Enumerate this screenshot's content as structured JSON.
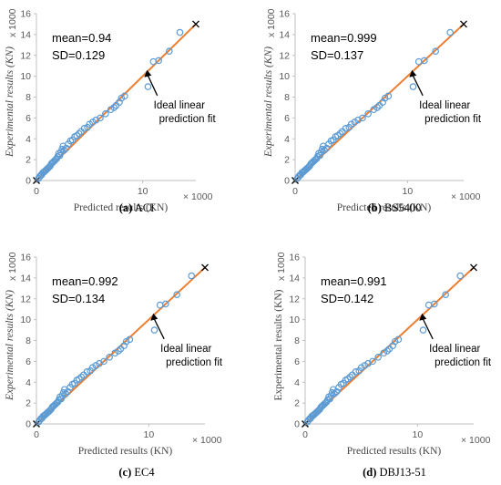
{
  "chart_data": [
    {
      "type": "scatter",
      "caption_letter": "(a)",
      "caption_name": "ACI",
      "mean_text": "mean=0.94",
      "sd_text": "SD=0.129",
      "annotation_line1": "Ideal linear",
      "annotation_line2": "prediction fit",
      "xlabel": "Predicted results (KN)",
      "ylabel": "Experimental results (KN)",
      "x_multiplier": "× 1000",
      "y_multiplier": "x 1000",
      "xlim": [
        0,
        15
      ],
      "ylim": [
        0,
        16
      ],
      "x_ticks": [
        "0",
        "10"
      ],
      "y_ticks": [
        "0",
        "2",
        "4",
        "6",
        "8",
        "10",
        "12",
        "14",
        "16"
      ],
      "ideal_line": [
        [
          0,
          0
        ],
        [
          15,
          15
        ]
      ],
      "x": [
        0.2,
        0.3,
        0.4,
        0.5,
        0.6,
        0.7,
        0.8,
        0.9,
        1.0,
        1.1,
        1.2,
        1.3,
        1.4,
        1.5,
        1.6,
        1.7,
        1.8,
        1.9,
        2.0,
        2.1,
        2.2,
        2.3,
        2.4,
        2.5,
        2.6,
        2.8,
        3.0,
        3.2,
        3.4,
        3.6,
        3.8,
        4.0,
        4.2,
        4.5,
        4.8,
        5.0,
        5.3,
        5.6,
        6.0,
        6.5,
        7.0,
        7.3,
        7.5,
        7.8,
        8.0,
        8.3,
        10.5,
        11.0,
        11.5,
        12.5,
        13.5
      ],
      "y": [
        0.2,
        0.35,
        0.5,
        0.55,
        0.75,
        0.8,
        0.9,
        1.0,
        1.1,
        1.2,
        1.3,
        1.4,
        1.6,
        1.7,
        1.8,
        1.9,
        2.0,
        2.1,
        2.3,
        2.6,
        2.4,
        2.7,
        3.0,
        3.3,
        2.9,
        3.1,
        3.5,
        3.8,
        3.9,
        4.2,
        4.3,
        4.5,
        4.7,
        5.0,
        5.1,
        5.4,
        5.6,
        5.8,
        6.0,
        6.4,
        6.8,
        7.0,
        7.2,
        7.5,
        7.9,
        8.1,
        9.0,
        11.4,
        11.5,
        12.4,
        14.2
      ]
    },
    {
      "type": "scatter",
      "caption_letter": "(b)",
      "caption_name": "BS5400",
      "mean_text": "mean=0.999",
      "sd_text": "SD=0.137",
      "annotation_line1": "Ideal linear",
      "annotation_line2": "prediction fit",
      "xlabel": "Predicted results (KN)",
      "ylabel": "Experimental results (KN)",
      "x_multiplier": "× 1000",
      "y_multiplier": "x 1000",
      "xlim": [
        0,
        15
      ],
      "ylim": [
        0,
        16
      ],
      "x_ticks": [
        "0",
        "10"
      ],
      "y_ticks": [
        "0",
        "2",
        "4",
        "6",
        "8",
        "10",
        "12",
        "14",
        "16"
      ],
      "ideal_line": [
        [
          0,
          0
        ],
        [
          15,
          15
        ]
      ],
      "x": [
        0.2,
        0.3,
        0.4,
        0.5,
        0.6,
        0.7,
        0.8,
        0.9,
        1.0,
        1.1,
        1.2,
        1.3,
        1.4,
        1.5,
        1.6,
        1.7,
        1.8,
        1.9,
        2.0,
        2.1,
        2.2,
        2.3,
        2.4,
        2.5,
        2.6,
        2.8,
        3.0,
        3.2,
        3.4,
        3.6,
        3.8,
        4.0,
        4.2,
        4.5,
        4.8,
        5.0,
        5.3,
        5.6,
        6.0,
        6.5,
        7.0,
        7.3,
        7.5,
        7.8,
        8.0,
        8.3,
        10.5,
        11.0,
        11.5,
        12.5,
        13.8
      ],
      "y": [
        0.2,
        0.35,
        0.5,
        0.55,
        0.75,
        0.8,
        0.9,
        1.0,
        1.1,
        1.2,
        1.3,
        1.4,
        1.6,
        1.7,
        1.8,
        1.9,
        2.0,
        2.1,
        2.3,
        2.6,
        2.4,
        2.7,
        3.0,
        3.3,
        2.9,
        3.1,
        3.5,
        3.8,
        3.9,
        4.2,
        4.3,
        4.5,
        4.7,
        5.0,
        5.1,
        5.4,
        5.6,
        5.8,
        6.0,
        6.4,
        6.8,
        7.0,
        7.2,
        7.5,
        7.9,
        8.1,
        9.0,
        11.4,
        11.5,
        12.4,
        14.2
      ]
    },
    {
      "type": "scatter",
      "caption_letter": "(c)",
      "caption_name": "EC4",
      "mean_text": "mean=0.992",
      "sd_text": "SD=0.134",
      "annotation_line1": "Ideal linear",
      "annotation_line2": "prediction fit",
      "xlabel": "Predicted results (KN)",
      "ylabel": "Experimental results (KN)",
      "x_multiplier": "× 1000",
      "y_multiplier": "x 1000",
      "xlim": [
        0,
        15
      ],
      "ylim": [
        0,
        16
      ],
      "x_ticks": [
        "0",
        "10"
      ],
      "y_ticks": [
        "0",
        "2",
        "4",
        "6",
        "8",
        "10",
        "12",
        "14",
        "16"
      ],
      "ideal_line": [
        [
          0,
          0
        ],
        [
          15,
          15
        ]
      ],
      "x": [
        0.2,
        0.3,
        0.4,
        0.5,
        0.6,
        0.7,
        0.8,
        0.9,
        1.0,
        1.1,
        1.2,
        1.3,
        1.4,
        1.5,
        1.6,
        1.7,
        1.8,
        1.9,
        2.0,
        2.1,
        2.2,
        2.3,
        2.4,
        2.5,
        2.6,
        2.8,
        3.0,
        3.2,
        3.4,
        3.6,
        3.8,
        4.0,
        4.2,
        4.5,
        4.8,
        5.0,
        5.3,
        5.6,
        6.0,
        6.5,
        7.0,
        7.3,
        7.5,
        7.8,
        8.0,
        8.3,
        10.5,
        11.0,
        11.5,
        12.5,
        13.8
      ],
      "y": [
        0.2,
        0.35,
        0.5,
        0.55,
        0.75,
        0.8,
        0.9,
        1.0,
        1.1,
        1.2,
        1.3,
        1.4,
        1.6,
        1.7,
        1.8,
        1.9,
        2.0,
        2.1,
        2.3,
        2.6,
        2.4,
        2.7,
        3.0,
        3.3,
        2.9,
        3.1,
        3.5,
        3.8,
        3.9,
        4.2,
        4.3,
        4.5,
        4.7,
        5.0,
        5.1,
        5.4,
        5.6,
        5.8,
        6.0,
        6.4,
        6.8,
        7.0,
        7.2,
        7.5,
        7.9,
        8.1,
        9.0,
        11.4,
        11.5,
        12.4,
        14.2
      ]
    },
    {
      "type": "scatter",
      "caption_letter": "(d)",
      "caption_name": "DBJ13-51",
      "mean_text": "mean=0.991",
      "sd_text": "SD=0.142",
      "annotation_line1": "Ideal linear",
      "annotation_line2": "prediction fit",
      "xlabel": "Predicted results (KN)",
      "ylabel": "Experimental results (KN)",
      "x_multiplier": "× 1000",
      "y_multiplier": "x 1000",
      "xlim": [
        0,
        15
      ],
      "ylim": [
        0,
        16
      ],
      "x_ticks": [
        "0",
        "10"
      ],
      "y_ticks": [
        "0",
        "2",
        "4",
        "6",
        "8",
        "10",
        "12",
        "14",
        "16"
      ],
      "ideal_line": [
        [
          0,
          0
        ],
        [
          15,
          15
        ]
      ],
      "x": [
        0.2,
        0.3,
        0.4,
        0.5,
        0.6,
        0.7,
        0.8,
        0.9,
        1.0,
        1.1,
        1.2,
        1.3,
        1.4,
        1.5,
        1.6,
        1.7,
        1.8,
        1.9,
        2.0,
        2.1,
        2.2,
        2.3,
        2.4,
        2.5,
        2.6,
        2.8,
        3.0,
        3.2,
        3.4,
        3.6,
        3.8,
        4.0,
        4.2,
        4.5,
        4.8,
        5.0,
        5.3,
        5.6,
        6.0,
        6.5,
        7.0,
        7.3,
        7.5,
        7.8,
        8.0,
        8.3,
        10.5,
        11.0,
        11.5,
        12.5,
        13.8
      ],
      "y": [
        0.2,
        0.35,
        0.5,
        0.55,
        0.75,
        0.8,
        0.9,
        1.0,
        1.1,
        1.2,
        1.3,
        1.4,
        1.6,
        1.7,
        1.8,
        1.9,
        2.0,
        2.1,
        2.3,
        2.6,
        2.4,
        2.7,
        3.0,
        3.3,
        2.9,
        3.1,
        3.5,
        3.8,
        3.9,
        4.2,
        4.3,
        4.5,
        4.7,
        5.0,
        5.1,
        5.4,
        5.6,
        5.8,
        6.0,
        6.4,
        6.8,
        7.0,
        7.2,
        7.5,
        7.9,
        8.1,
        9.0,
        11.4,
        11.5,
        12.4,
        14.2
      ]
    }
  ],
  "colors": {
    "marker": "#5b9bd5",
    "ideal_line": "#ed7d31",
    "axis": "#bfbfbf",
    "text": "#000000",
    "tick_text": "#595959"
  }
}
